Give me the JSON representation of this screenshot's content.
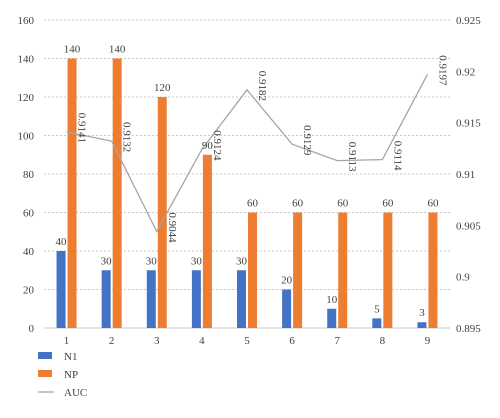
{
  "chart_data": {
    "type": "bar",
    "categories": [
      "1",
      "2",
      "3",
      "4",
      "5",
      "6",
      "7",
      "8",
      "9"
    ],
    "series": [
      {
        "name": "N1",
        "type": "bar",
        "axis": "left",
        "color": "#4472C4",
        "values": [
          40,
          30,
          30,
          30,
          30,
          20,
          10,
          5,
          3
        ]
      },
      {
        "name": "NP",
        "type": "bar",
        "axis": "left",
        "color": "#ED7D31",
        "values": [
          140,
          140,
          120,
          90,
          60,
          60,
          60,
          60,
          60
        ]
      },
      {
        "name": "AUC",
        "type": "line",
        "axis": "right",
        "color": "#A5A5A5",
        "values": [
          0.9141,
          0.9132,
          0.9044,
          0.9124,
          0.9182,
          0.9129,
          0.9113,
          0.9114,
          0.9197
        ]
      }
    ],
    "bar_labels": {
      "N1": [
        "40",
        "30",
        "30",
        "30",
        "30",
        "20",
        "10",
        "5",
        "3"
      ],
      "NP": [
        "140",
        "140",
        "120",
        "90",
        "60",
        "60",
        "60",
        "60",
        "60"
      ]
    },
    "auc_labels": [
      "0.9141",
      "0.9132",
      "0.9044",
      "0.9124",
      "0.9182",
      "0.9129",
      "0.9113",
      "0.9114",
      "0.9197"
    ],
    "left_axis": {
      "ylim": [
        0,
        160
      ],
      "ticks": [
        "0",
        "20",
        "40",
        "60",
        "80",
        "100",
        "120",
        "140",
        "160"
      ]
    },
    "right_axis": {
      "ylim": [
        0.895,
        0.925
      ],
      "ticks": [
        "0.895",
        "0.9",
        "0.905",
        "0.91",
        "0.915",
        "0.92",
        "0.925"
      ]
    },
    "grid": "dashed horizontal",
    "legend": {
      "position": "bottom-left",
      "items": [
        "N1",
        "NP",
        "AUC"
      ]
    }
  }
}
